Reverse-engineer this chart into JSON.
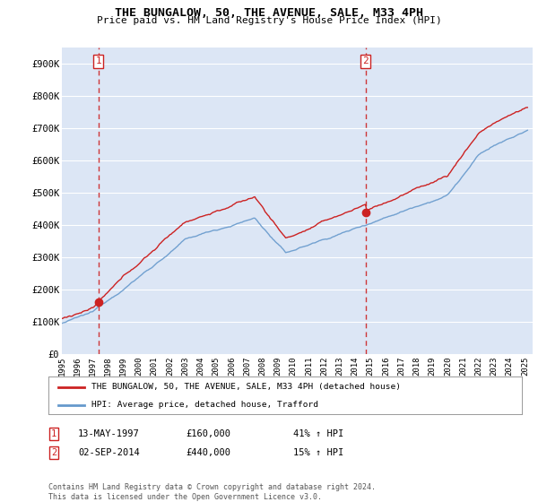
{
  "title": "THE BUNGALOW, 50, THE AVENUE, SALE, M33 4PH",
  "subtitle": "Price paid vs. HM Land Registry's House Price Index (HPI)",
  "plot_bg_color": "#dce6f5",
  "grid_color": "#ffffff",
  "ylim": [
    0,
    950000
  ],
  "yticks": [
    0,
    100000,
    200000,
    300000,
    400000,
    500000,
    600000,
    700000,
    800000,
    900000
  ],
  "ytick_labels": [
    "£0",
    "£100K",
    "£200K",
    "£300K",
    "£400K",
    "£500K",
    "£600K",
    "£700K",
    "£800K",
    "£900K"
  ],
  "xlim_start": 1995.0,
  "xlim_end": 2025.5,
  "xticks": [
    1995,
    1996,
    1997,
    1998,
    1999,
    2000,
    2001,
    2002,
    2003,
    2004,
    2005,
    2006,
    2007,
    2008,
    2009,
    2010,
    2011,
    2012,
    2013,
    2014,
    2015,
    2016,
    2017,
    2018,
    2019,
    2020,
    2021,
    2022,
    2023,
    2024,
    2025
  ],
  "transaction1_x": 1997.36,
  "transaction1_y": 160000,
  "transaction2_x": 2014.67,
  "transaction2_y": 440000,
  "legend_line1": "THE BUNGALOW, 50, THE AVENUE, SALE, M33 4PH (detached house)",
  "legend_line2": "HPI: Average price, detached house, Trafford",
  "footer": "Contains HM Land Registry data © Crown copyright and database right 2024.\nThis data is licensed under the Open Government Licence v3.0.",
  "hpi_color": "#6699cc",
  "price_color": "#cc2222",
  "vline_color": "#cc2222"
}
